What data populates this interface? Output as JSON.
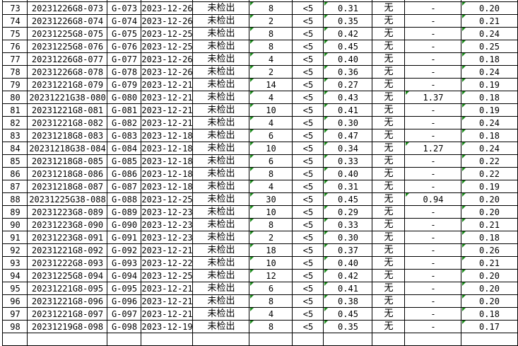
{
  "spreadsheet": {
    "indicator_color": "#1a8a1a",
    "rows": [
      {
        "no": "73",
        "id": "20231226G8-073",
        "code": "G-073",
        "date": "2023-12-26",
        "result": "未检出",
        "n": "8",
        "lt": "<5",
        "v1": "0.31",
        "flag": "无",
        "v2": "-",
        "v3": "0.20"
      },
      {
        "no": "74",
        "id": "20231226G8-074",
        "code": "G-074",
        "date": "2023-12-26",
        "result": "未检出",
        "n": "2",
        "lt": "<5",
        "v1": "0.35",
        "flag": "无",
        "v2": "-",
        "v3": "0.21"
      },
      {
        "no": "75",
        "id": "20231225G8-075",
        "code": "G-075",
        "date": "2023-12-25",
        "result": "未检出",
        "n": "8",
        "lt": "<5",
        "v1": "0.42",
        "flag": "无",
        "v2": "-",
        "v3": "0.24"
      },
      {
        "no": "76",
        "id": "20231225G8-076",
        "code": "G-076",
        "date": "2023-12-25",
        "result": "未检出",
        "n": "8",
        "lt": "<5",
        "v1": "0.45",
        "flag": "无",
        "v2": "-",
        "v3": "0.25"
      },
      {
        "no": "77",
        "id": "20231226G8-077",
        "code": "G-077",
        "date": "2023-12-26",
        "result": "未检出",
        "n": "4",
        "lt": "<5",
        "v1": "0.40",
        "flag": "无",
        "v2": "-",
        "v3": "0.18"
      },
      {
        "no": "78",
        "id": "20231226G8-078",
        "code": "G-078",
        "date": "2023-12-26",
        "result": "未检出",
        "n": "2",
        "lt": "<5",
        "v1": "0.36",
        "flag": "无",
        "v2": "-",
        "v3": "0.24"
      },
      {
        "no": "79",
        "id": "20231221G8-079",
        "code": "G-079",
        "date": "2023-12-21",
        "result": "未检出",
        "n": "14",
        "lt": "<5",
        "v1": "0.27",
        "flag": "无",
        "v2": "-",
        "v3": "0.19"
      },
      {
        "no": "80",
        "id": "20231221G38-080",
        "code": "G-080",
        "date": "2023-12-21",
        "result": "未检出",
        "n": "4",
        "lt": "<5",
        "v1": "0.43",
        "flag": "无",
        "v2": "1.37",
        "v3": "0.18"
      },
      {
        "no": "81",
        "id": "20231221G8-081",
        "code": "G-081",
        "date": "2023-12-21",
        "result": "未检出",
        "n": "10",
        "lt": "<5",
        "v1": "0.41",
        "flag": "无",
        "v2": "-",
        "v3": "0.19"
      },
      {
        "no": "82",
        "id": "20231221G8-082",
        "code": "G-082",
        "date": "2023-12-21",
        "result": "未检出",
        "n": "4",
        "lt": "<5",
        "v1": "0.30",
        "flag": "无",
        "v2": "-",
        "v3": "0.24"
      },
      {
        "no": "83",
        "id": "20231218G8-083",
        "code": "G-083",
        "date": "2023-12-18",
        "result": "未检出",
        "n": "6",
        "lt": "<5",
        "v1": "0.47",
        "flag": "无",
        "v2": "-",
        "v3": "0.18"
      },
      {
        "no": "84",
        "id": "20231218G38-084",
        "code": "G-084",
        "date": "2023-12-18",
        "result": "未检出",
        "n": "10",
        "lt": "<5",
        "v1": "0.34",
        "flag": "无",
        "v2": "1.27",
        "v3": "0.24"
      },
      {
        "no": "85",
        "id": "20231218G8-085",
        "code": "G-085",
        "date": "2023-12-18",
        "result": "未检出",
        "n": "6",
        "lt": "<5",
        "v1": "0.33",
        "flag": "无",
        "v2": "-",
        "v3": "0.22"
      },
      {
        "no": "86",
        "id": "20231218G8-086",
        "code": "G-086",
        "date": "2023-12-18",
        "result": "未检出",
        "n": "8",
        "lt": "<5",
        "v1": "0.40",
        "flag": "无",
        "v2": "-",
        "v3": "0.22"
      },
      {
        "no": "87",
        "id": "20231218G8-087",
        "code": "G-087",
        "date": "2023-12-18",
        "result": "未检出",
        "n": "4",
        "lt": "<5",
        "v1": "0.31",
        "flag": "无",
        "v2": "-",
        "v3": "0.19"
      },
      {
        "no": "88",
        "id": "20231225G38-088",
        "code": "G-088",
        "date": "2023-12-25",
        "result": "未检出",
        "n": "30",
        "lt": "<5",
        "v1": "0.45",
        "flag": "无",
        "v2": "0.94",
        "v3": "0.20"
      },
      {
        "no": "89",
        "id": "20231223G8-089",
        "code": "G-089",
        "date": "2023-12-23",
        "result": "未检出",
        "n": "10",
        "lt": "<5",
        "v1": "0.29",
        "flag": "无",
        "v2": "-",
        "v3": "0.20"
      },
      {
        "no": "90",
        "id": "20231223G8-090",
        "code": "G-090",
        "date": "2023-12-23",
        "result": "未检出",
        "n": "8",
        "lt": "<5",
        "v1": "0.33",
        "flag": "无",
        "v2": "-",
        "v3": "0.21"
      },
      {
        "no": "91",
        "id": "20231223G8-091",
        "code": "G-091",
        "date": "2023-12-23",
        "result": "未检出",
        "n": "2",
        "lt": "<5",
        "v1": "0.30",
        "flag": "无",
        "v2": "-",
        "v3": "0.18"
      },
      {
        "no": "92",
        "id": "20231221G8-092",
        "code": "G-092",
        "date": "2023-12-21",
        "result": "未检出",
        "n": "18",
        "lt": "<5",
        "v1": "0.37",
        "flag": "无",
        "v2": "-",
        "v3": "0.26"
      },
      {
        "no": "93",
        "id": "20231222G8-093",
        "code": "G-093",
        "date": "2023-12-22",
        "result": "未检出",
        "n": "10",
        "lt": "<5",
        "v1": "0.40",
        "flag": "无",
        "v2": "-",
        "v3": "0.21"
      },
      {
        "no": "94",
        "id": "20231225G8-094",
        "code": "G-094",
        "date": "2023-12-25",
        "result": "未检出",
        "n": "12",
        "lt": "<5",
        "v1": "0.42",
        "flag": "无",
        "v2": "-",
        "v3": "0.20"
      },
      {
        "no": "95",
        "id": "20231221G8-095",
        "code": "G-095",
        "date": "2023-12-21",
        "result": "未检出",
        "n": "6",
        "lt": "<5",
        "v1": "0.41",
        "flag": "无",
        "v2": "-",
        "v3": "0.20"
      },
      {
        "no": "96",
        "id": "20231221G8-096",
        "code": "G-096",
        "date": "2023-12-21",
        "result": "未检出",
        "n": "8",
        "lt": "<5",
        "v1": "0.38",
        "flag": "无",
        "v2": "-",
        "v3": "0.20"
      },
      {
        "no": "97",
        "id": "20231221G8-097",
        "code": "G-097",
        "date": "2023-12-21",
        "result": "未检出",
        "n": "4",
        "lt": "<5",
        "v1": "0.45",
        "flag": "无",
        "v2": "-",
        "v3": "0.18"
      },
      {
        "no": "98",
        "id": "20231219G8-098",
        "code": "G-098",
        "date": "2023-12-19",
        "result": "未检出",
        "n": "8",
        "lt": "<5",
        "v1": "0.35",
        "flag": "无",
        "v2": "-",
        "v3": "0.17"
      }
    ]
  }
}
